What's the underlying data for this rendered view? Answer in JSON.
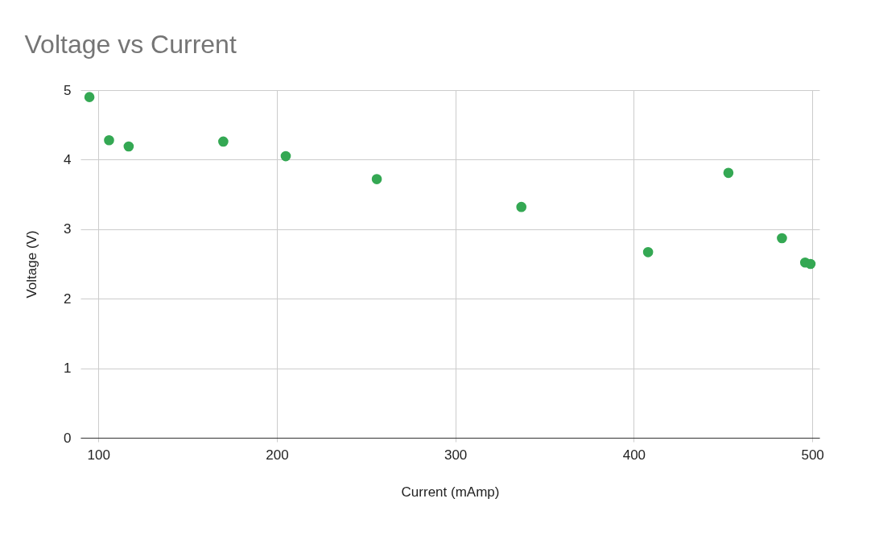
{
  "chart_data": {
    "type": "scatter",
    "title": "Voltage vs Current",
    "xlabel": "Current (mAmp)",
    "ylabel": "Voltage (V)",
    "x": [
      95,
      106,
      117,
      170,
      205,
      256,
      337,
      408,
      453,
      483,
      496,
      499
    ],
    "series": [
      {
        "color": "#34a853",
        "values": [
          4.9,
          4.28,
          4.19,
          4.26,
          4.05,
          3.72,
          3.32,
          2.67,
          3.81,
          2.87,
          2.52,
          2.5
        ]
      }
    ],
    "xlim": [
      90,
      504
    ],
    "xticks": [
      100,
      200,
      300,
      400,
      500
    ],
    "ylim": [
      0,
      5
    ],
    "yticks": [
      0,
      1,
      2,
      3,
      4,
      5
    ],
    "grid": true,
    "marker": "circle"
  }
}
